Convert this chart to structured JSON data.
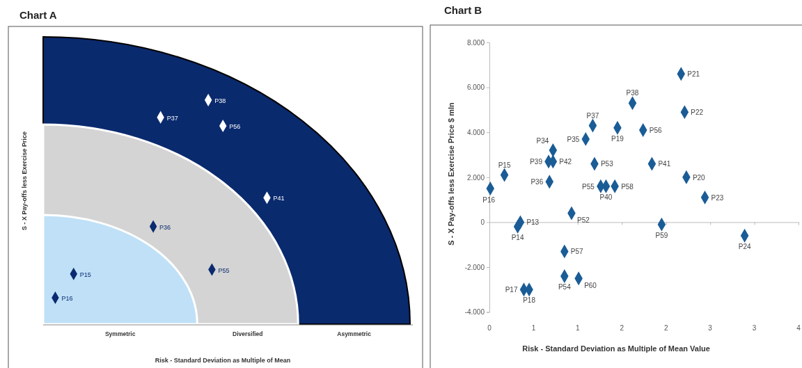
{
  "chart_data": [
    {
      "type": "other",
      "title": "Chart A",
      "xlabel": "Risk - Standard Deviation as Multiple of Mean",
      "ylabel": "S - X Pay-offs less Exercise Price",
      "annotations": [
        "Symmetric",
        "Diversified",
        "Asymmetric",
        "P38",
        "P37",
        "P56",
        "P41",
        "P36",
        "P55",
        "P15",
        "P16"
      ]
    },
    {
      "type": "scatter",
      "title": "Chart B",
      "xlabel": "Risk - Standard Deviation as Multiple of Mean Value",
      "ylabel": "S - X Pay-offs less Exercise Price $ mln",
      "marker": "diamond",
      "color": "#1a5c96",
      "xlim": [
        0,
        3.5
      ],
      "ylim": [
        -4000,
        8000
      ],
      "xticks": [
        0,
        {
          "value": 0.5,
          "label": "1"
        },
        1,
        {
          "value": 1.5,
          "label": "2"
        },
        2,
        {
          "value": 2.5,
          "label": "3"
        },
        3,
        {
          "value": 3.5,
          "label": "4"
        }
      ],
      "yticks": [
        {
          "value": -4000,
          "label": "-4.000"
        },
        {
          "value": -2000,
          "label": "-2.000"
        },
        0,
        {
          "value": 2000,
          "label": "2.000"
        },
        {
          "value": 4000,
          "label": "4.000"
        },
        {
          "value": 6000,
          "label": "6.000"
        },
        {
          "value": 8000,
          "label": "8.000"
        }
      ],
      "x": [
        0.01,
        0.17,
        0.35,
        0.32,
        0.68,
        0.67,
        0.72,
        0.72,
        1.09,
        1.17,
        1.19,
        1.26,
        1.32,
        1.42,
        1.45,
        1.62,
        1.74,
        1.84,
        2.17,
        2.21,
        2.23,
        2.44,
        0.93,
        1.95,
        2.89,
        0.85,
        0.85,
        1.01,
        0.39,
        0.45
      ],
      "values": [
        1500,
        2100,
        0,
        -200,
        1800,
        2700,
        2700,
        3200,
        3700,
        4300,
        2600,
        1600,
        1600,
        1600,
        4200,
        5300,
        4100,
        2600,
        6600,
        4900,
        2000,
        1100,
        400,
        -100,
        -600,
        -1300,
        -2400,
        -2500,
        -3000,
        -3000
      ],
      "value_labels": [
        "P16",
        "P15",
        "P13",
        "P14",
        "P36",
        "P39",
        "P42",
        "P34",
        "P35",
        "P37",
        "P53",
        "P55",
        "P40",
        "P58",
        "P19",
        "P38",
        "P56",
        "P41",
        "P21",
        "P22",
        "P20",
        "P23",
        "P52",
        "P59",
        "P24",
        "P57",
        "P54",
        "P60",
        "P17",
        "P18"
      ]
    }
  ]
}
